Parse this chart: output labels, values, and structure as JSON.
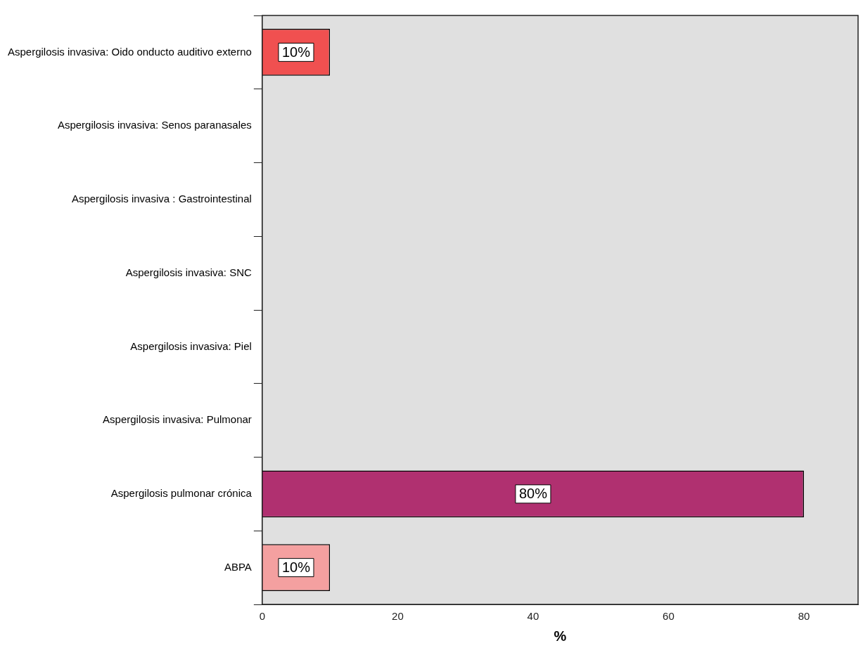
{
  "chart_data": {
    "type": "bar",
    "orientation": "horizontal",
    "xlabel": "%",
    "categories": [
      "Aspergilosis invasiva: Oido onducto auditivo externo",
      "Aspergilosis invasiva: Senos paranasales",
      "Aspergilosis invasiva : Gastrointestinal",
      "Aspergilosis invasiva: SNC",
      "Aspergilosis invasiva: Piel",
      "Aspergilosis invasiva: Pulmonar",
      "Aspergilosis pulmonar crónica",
      "ABPA"
    ],
    "values": [
      10,
      0,
      0,
      0,
      0,
      0,
      80,
      10
    ],
    "colors": [
      "#f05050",
      "#999999",
      "#999999",
      "#999999",
      "#999999",
      "#999999",
      "#b03070",
      "#f4a0a0"
    ],
    "value_labels": [
      "10%",
      null,
      null,
      null,
      null,
      null,
      "80%",
      "10%"
    ],
    "xlim": [
      0,
      88
    ],
    "xticks": [
      0,
      20,
      40,
      60,
      80
    ],
    "grid": false,
    "legend": false
  }
}
